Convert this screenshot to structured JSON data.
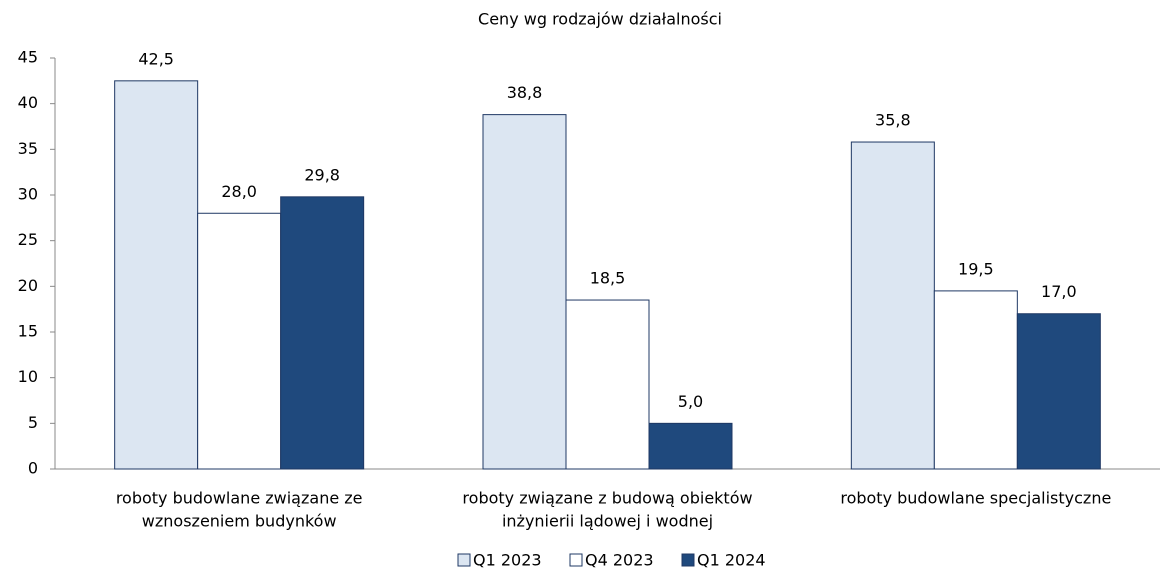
{
  "chart_data": {
    "type": "bar",
    "title": "Ceny wg rodzajów działalności",
    "categories": [
      [
        "roboty budowlane związane ze",
        "wznoszeniem budynków"
      ],
      [
        "roboty związane z budową obiektów",
        "inżynierii lądowej i wodnej"
      ],
      [
        "roboty budowlane specjalistyczne"
      ]
    ],
    "series": [
      {
        "name": "Q1 2023",
        "color": "#dce6f2",
        "values": [
          42.5,
          38.8,
          35.8
        ],
        "value_labels": [
          "42,5",
          "38,8",
          "35,8"
        ]
      },
      {
        "name": "Q4 2023",
        "color": "#ffffff",
        "values": [
          28.0,
          18.5,
          19.5
        ],
        "value_labels": [
          "28,0",
          "18,5",
          "19,5"
        ]
      },
      {
        "name": "Q1 2024",
        "color": "#1f497d",
        "values": [
          29.8,
          5.0,
          17.0
        ],
        "value_labels": [
          "29,8",
          "5,0",
          "17,0"
        ]
      }
    ],
    "ylim": [
      0,
      45
    ],
    "yticks": [
      0,
      5,
      10,
      15,
      20,
      25,
      30,
      35,
      40,
      45
    ],
    "grid": false,
    "legend": "bottom"
  }
}
